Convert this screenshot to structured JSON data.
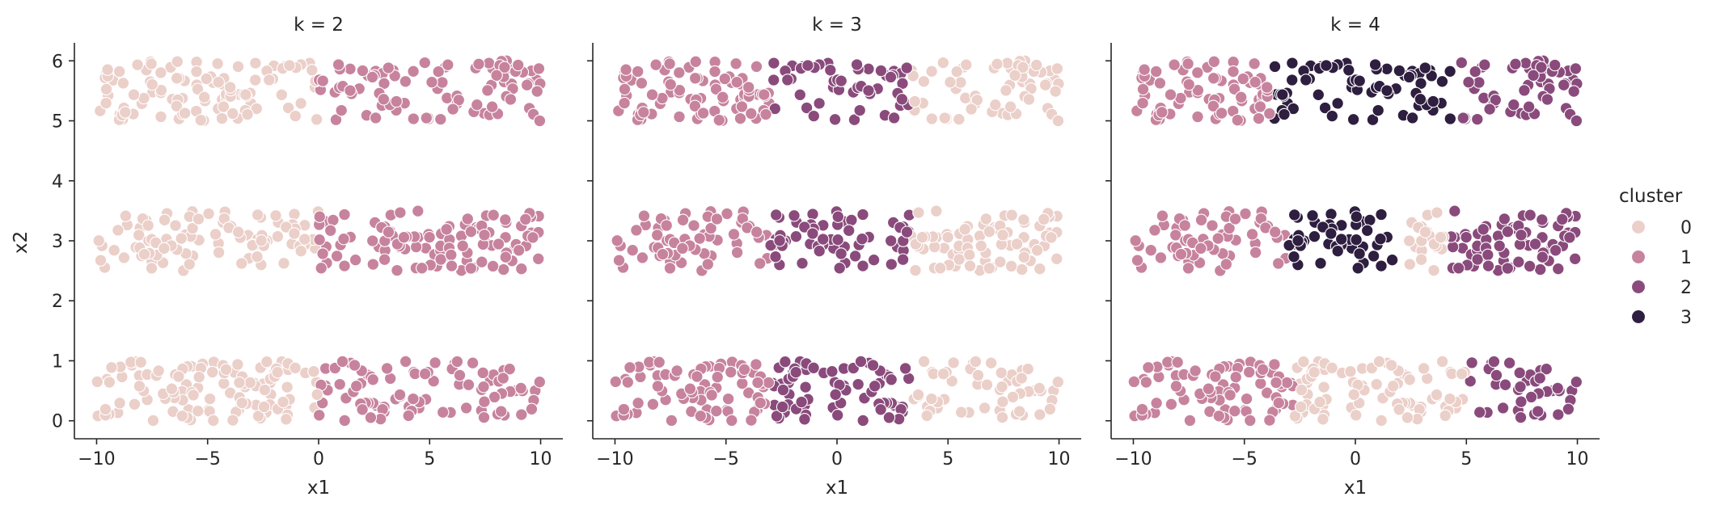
{
  "chart_data": {
    "type": "scatter",
    "xlabel": "x1",
    "ylabel": "x2",
    "xlim": [
      -11,
      11
    ],
    "ylim": [
      -0.3,
      6.3
    ],
    "xticks": [
      -10,
      -5,
      0,
      5,
      10
    ],
    "xtick_labels": [
      "−10",
      "−5",
      "0",
      "5",
      "10"
    ],
    "yticks": [
      0,
      1,
      2,
      3,
      4,
      5,
      6
    ],
    "ytick_labels": [
      "0",
      "1",
      "2",
      "3",
      "4",
      "5",
      "6"
    ],
    "grid": false,
    "legend_placement": "right",
    "legend": {
      "title": "cluster",
      "entries": [
        {
          "label": "0",
          "color": "#ebcfc9"
        },
        {
          "label": "1",
          "color": "#c7839d"
        },
        {
          "label": "2",
          "color": "#8a4b7c"
        },
        {
          "label": "3",
          "color": "#2e1e3f"
        }
      ]
    },
    "data_description": "About 600 points in three horizontal bands (x2 in [0,1], [2.5,3.5], [5,6]) spread uniformly over x1 in [-10,10]; the same points are shown in each panel, colored by k-means cluster assignment.",
    "panels": [
      {
        "title": "k = 2",
        "clusters": [
          {
            "cluster": "0",
            "color": "#ebcfc9",
            "x_range": [
              -10,
              0
            ]
          },
          {
            "cluster": "1",
            "color": "#c7839d",
            "x_range": [
              0,
              10
            ]
          }
        ]
      },
      {
        "title": "k = 3",
        "clusters": [
          {
            "cluster": "1",
            "color": "#c7839d",
            "x_range": [
              -10,
              -3
            ]
          },
          {
            "cluster": "2",
            "color": "#8a4b7c",
            "x_range": [
              -3,
              3.3
            ]
          },
          {
            "cluster": "0",
            "color": "#ebcfc9",
            "x_range": [
              3.3,
              10
            ]
          }
        ]
      },
      {
        "title": "k = 4",
        "band_assignments": [
          {
            "band": [
              5,
              6
            ],
            "clusters": [
              {
                "cluster": "1",
                "color": "#c7839d",
                "x_range": [
                  -10,
                  -3.8
                ]
              },
              {
                "cluster": "3",
                "color": "#2e1e3f",
                "x_range": [
                  -3.8,
                  4.3
                ]
              },
              {
                "cluster": "2",
                "color": "#8a4b7c",
                "x_range": [
                  4.3,
                  10
                ]
              }
            ]
          },
          {
            "band": [
              2.5,
              3.5
            ],
            "clusters": [
              {
                "cluster": "1",
                "color": "#c7839d",
                "x_range": [
                  -10,
                  -3
                ]
              },
              {
                "cluster": "3",
                "color": "#2e1e3f",
                "x_range": [
                  -3,
                  2
                ]
              },
              {
                "cluster": "0",
                "color": "#ebcfc9",
                "x_range": [
                  2,
                  4.2
                ]
              },
              {
                "cluster": "2",
                "color": "#8a4b7c",
                "x_range": [
                  4.2,
                  10
                ]
              }
            ]
          },
          {
            "band": [
              0,
              1
            ],
            "clusters": [
              {
                "cluster": "1",
                "color": "#c7839d",
                "x_range": [
                  -10,
                  -2.8
                ]
              },
              {
                "cluster": "0",
                "color": "#ebcfc9",
                "x_range": [
                  -2.8,
                  5
                ]
              },
              {
                "cluster": "2",
                "color": "#8a4b7c",
                "x_range": [
                  5,
                  10
                ]
              }
            ]
          }
        ]
      }
    ]
  }
}
